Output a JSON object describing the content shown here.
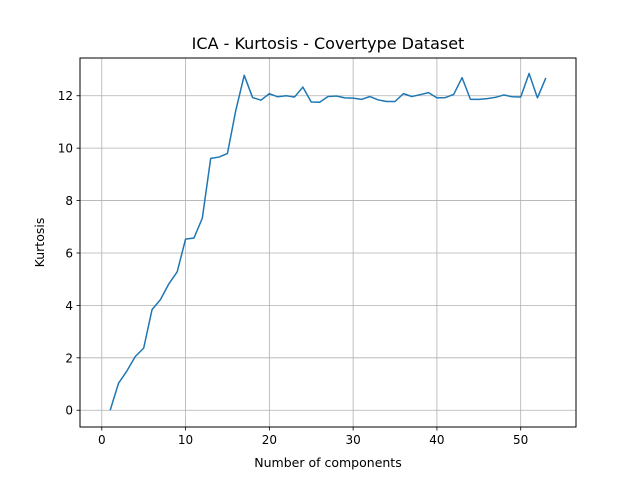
{
  "chart_data": {
    "type": "line",
    "title": "ICA - Kurtosis - Covertype Dataset",
    "xlabel": "Number of components",
    "ylabel": "Kurtosis",
    "xlim": [
      -2.6,
      56.6
    ],
    "ylim": [
      -0.64,
      13.44
    ],
    "xticks": [
      0,
      10,
      20,
      30,
      40,
      50
    ],
    "yticks": [
      0,
      2,
      4,
      6,
      8,
      10,
      12
    ],
    "grid": true,
    "line_color": "#1f77b4",
    "series": [
      {
        "name": "Kurtosis",
        "x": [
          1,
          2,
          3,
          4,
          5,
          6,
          7,
          8,
          9,
          10,
          11,
          12,
          13,
          14,
          15,
          16,
          17,
          18,
          19,
          20,
          21,
          22,
          23,
          24,
          25,
          26,
          27,
          28,
          29,
          30,
          31,
          32,
          33,
          34,
          35,
          36,
          37,
          38,
          39,
          40,
          41,
          42,
          43,
          44,
          45,
          46,
          47,
          48,
          49,
          50,
          51,
          52,
          53
        ],
        "values": [
          0.0,
          1.03,
          1.5,
          2.05,
          2.37,
          3.84,
          4.22,
          4.82,
          5.28,
          6.53,
          6.57,
          7.33,
          9.61,
          9.66,
          9.8,
          11.45,
          12.78,
          11.93,
          11.83,
          12.08,
          11.96,
          12.0,
          11.95,
          12.33,
          11.76,
          11.75,
          11.97,
          11.99,
          11.92,
          11.91,
          11.86,
          11.97,
          11.84,
          11.78,
          11.78,
          12.08,
          11.97,
          12.04,
          12.12,
          11.92,
          11.93,
          12.05,
          12.69,
          11.86,
          11.86,
          11.89,
          11.94,
          12.03,
          11.96,
          11.95,
          12.85,
          11.92,
          12.68
        ]
      }
    ]
  }
}
